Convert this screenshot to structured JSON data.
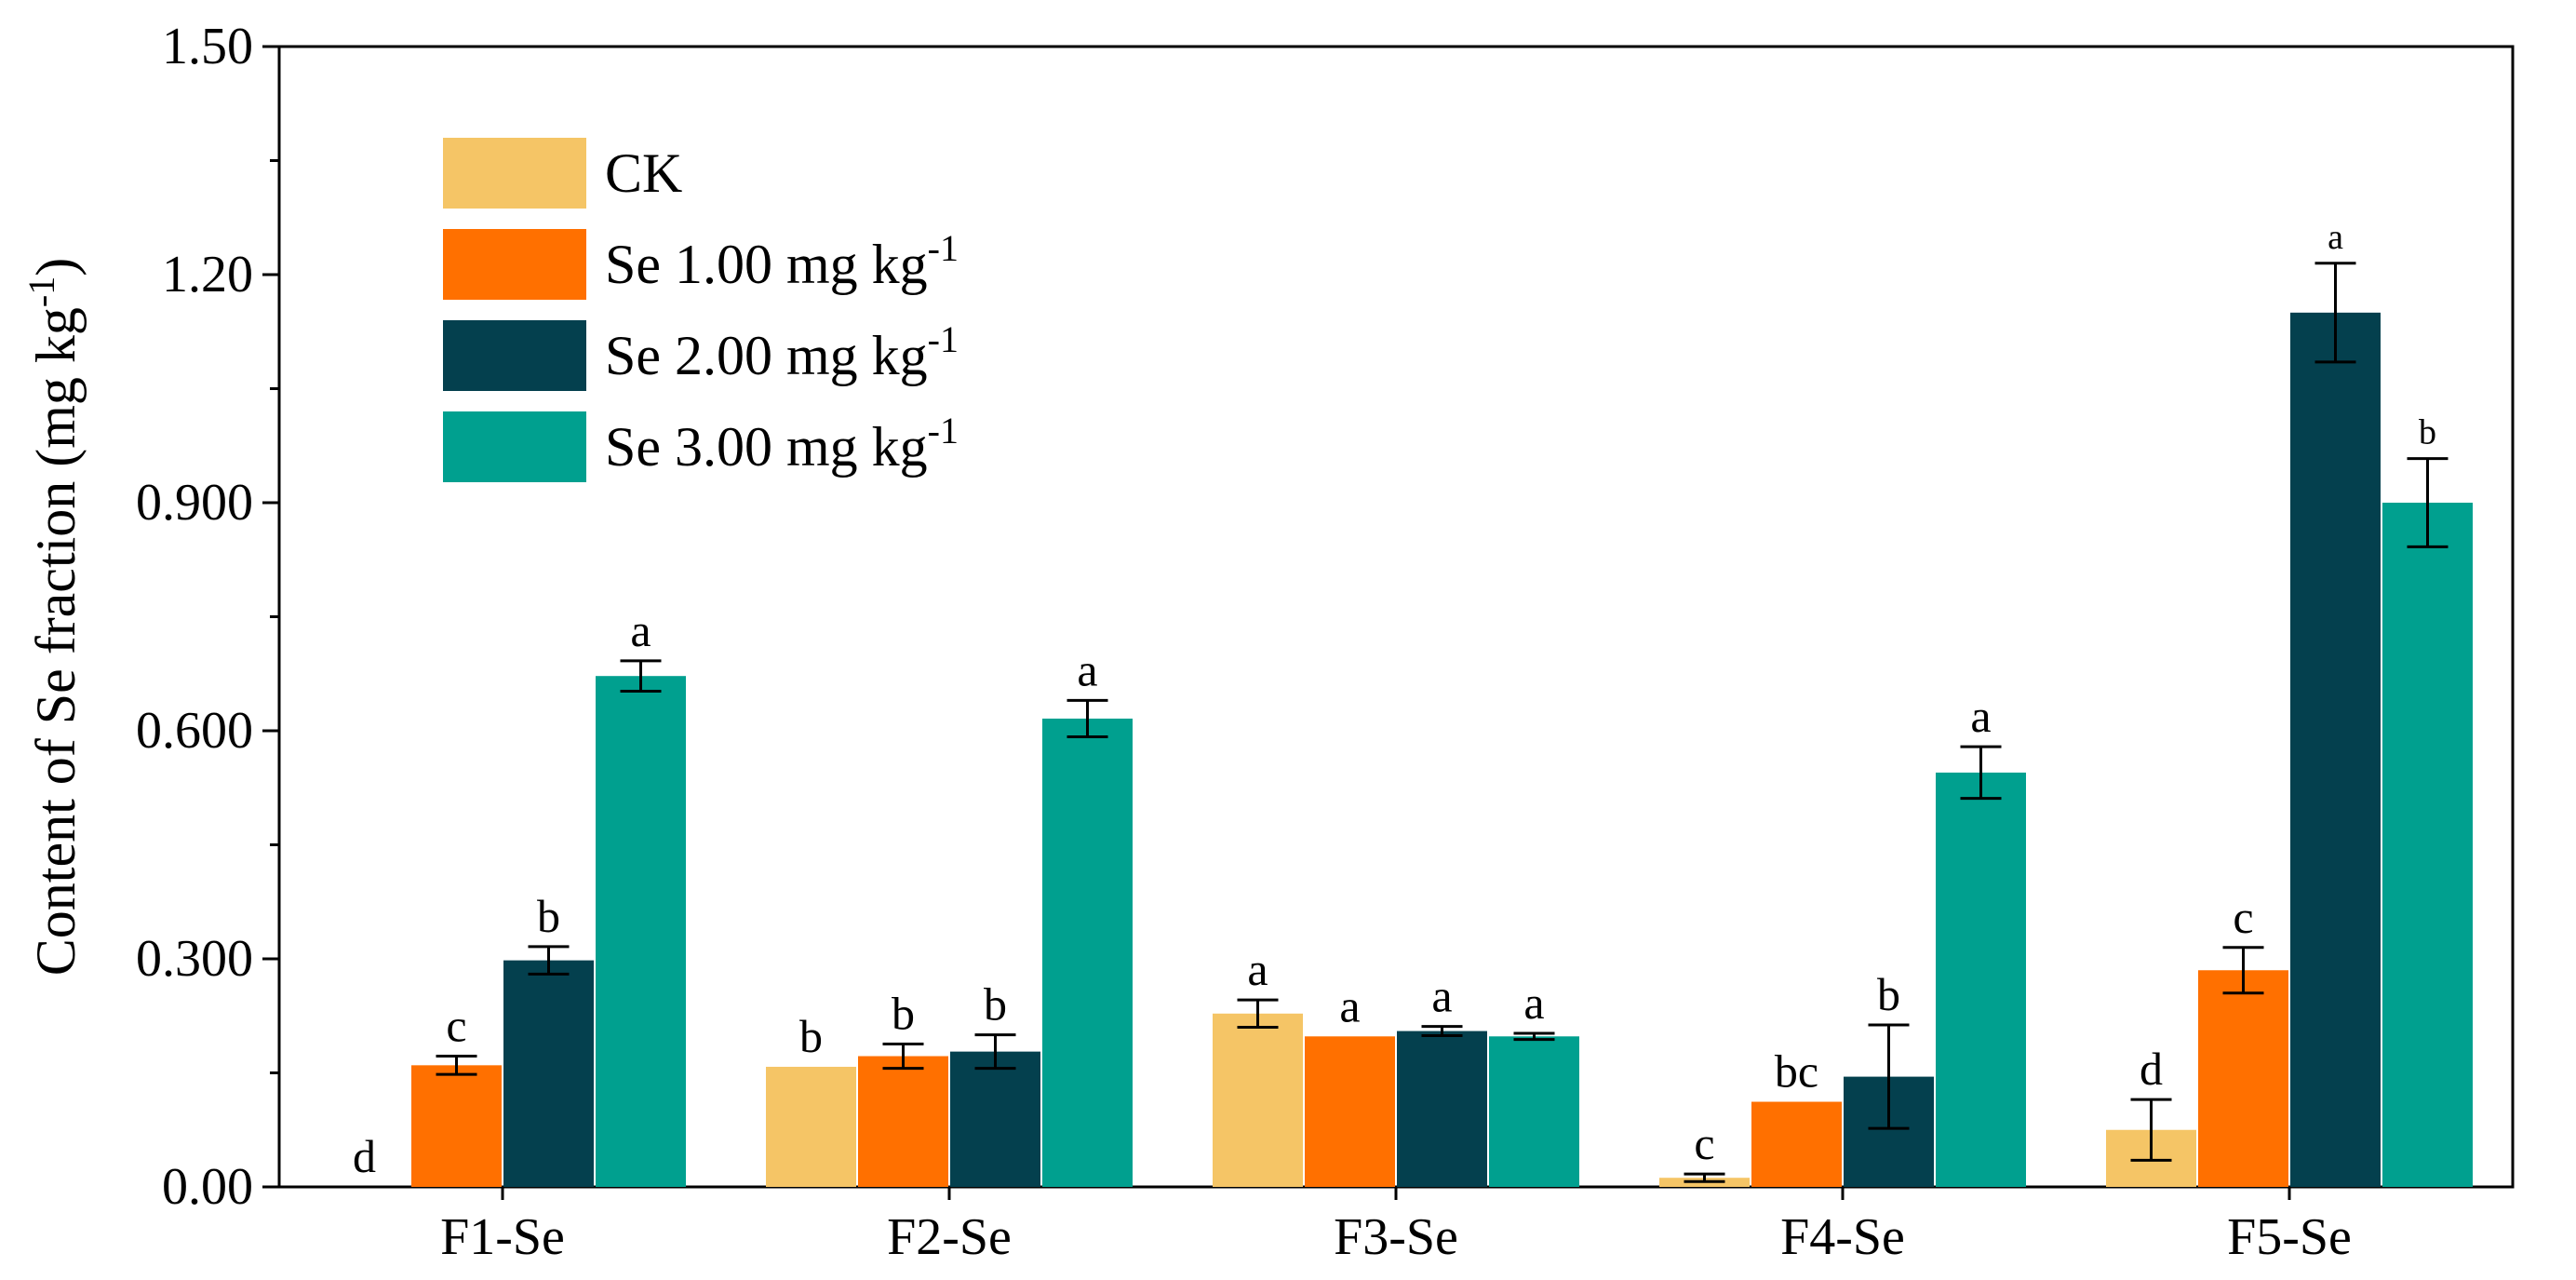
{
  "chart_data": {
    "type": "bar",
    "title": "",
    "xlabel": "",
    "ylabel": "Content of Se fraction (mg kg-1)",
    "ylabel_parts": {
      "main": "Content of Se fraction  (mg kg",
      "sup": "-1",
      "close": ")"
    },
    "ylim": [
      0,
      1.5
    ],
    "yticks": [
      0,
      0.3,
      0.6,
      0.9,
      1.2,
      1.5
    ],
    "ytick_labels": [
      "0.00",
      "0.300",
      "0.600",
      "0.900",
      "1.20",
      "1.50"
    ],
    "legend_position": "top-left",
    "categories": [
      "F1-Se",
      "F2-Se",
      "F3-Se",
      "F4-Se",
      "F5-Se"
    ],
    "series": [
      {
        "name": "CK",
        "unit_sup": "",
        "color": "#F5C566",
        "values": [
          0.0,
          0.158,
          0.228,
          0.012,
          0.075
        ],
        "errors": [
          0.0,
          0.0,
          0.018,
          0.005,
          0.04
        ],
        "letters": [
          "d",
          "b",
          "a",
          "c",
          "d"
        ]
      },
      {
        "name": "Se 1.00 mg kg",
        "unit_sup": "-1",
        "color": "#FF7000",
        "values": [
          0.16,
          0.172,
          0.198,
          0.112,
          0.285
        ],
        "errors": [
          0.012,
          0.016,
          0.0,
          0.0,
          0.03
        ],
        "letters": [
          "c",
          "b",
          "a",
          "bc",
          "c"
        ]
      },
      {
        "name": "Se 2.00 mg kg",
        "unit_sup": "-1",
        "color": "#04404E",
        "values": [
          0.298,
          0.178,
          0.205,
          0.145,
          1.15
        ],
        "errors": [
          0.018,
          0.022,
          0.006,
          0.068,
          0.065
        ],
        "letters": [
          "b",
          "b",
          "a",
          "b",
          "a"
        ]
      },
      {
        "name": "Se 3.00 mg kg",
        "unit_sup": "-1",
        "color": "#00A08F",
        "values": [
          0.672,
          0.616,
          0.198,
          0.545,
          0.9
        ],
        "errors": [
          0.02,
          0.024,
          0.004,
          0.034,
          0.058
        ],
        "letters": [
          "a",
          "a",
          "a",
          "a",
          "b"
        ]
      }
    ]
  }
}
